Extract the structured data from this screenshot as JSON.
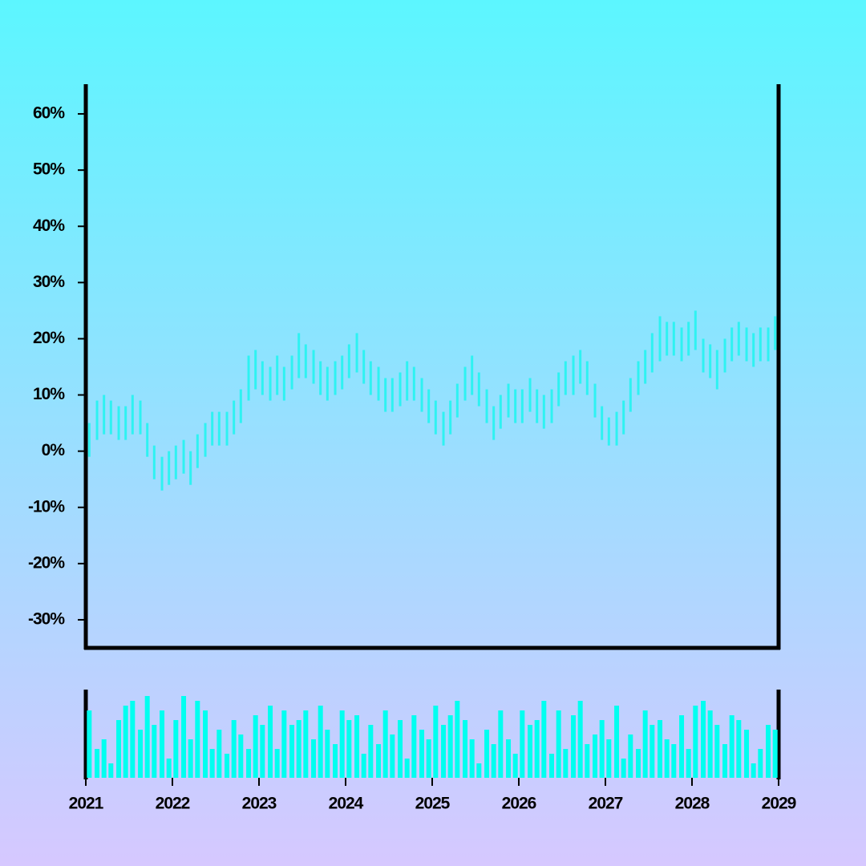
{
  "chart_data": {
    "type": "range",
    "color": "#2ef2f2",
    "volume_color": "#00fff0",
    "x": [
      2021.04,
      2021.13,
      2021.21,
      2021.29,
      2021.38,
      2021.46,
      2021.54,
      2021.63,
      2021.71,
      2021.79,
      2021.88,
      2021.96,
      2022.04,
      2022.13,
      2022.21,
      2022.29,
      2022.38,
      2022.46,
      2022.54,
      2022.63,
      2022.71,
      2022.79,
      2022.88,
      2022.96,
      2023.04,
      2023.13,
      2023.21,
      2023.29,
      2023.38,
      2023.46,
      2023.54,
      2023.63,
      2023.71,
      2023.79,
      2023.88,
      2023.96,
      2024.04,
      2024.13,
      2024.21,
      2024.29,
      2024.38,
      2024.46,
      2024.54,
      2024.63,
      2024.71,
      2024.79,
      2024.88,
      2024.96,
      2025.04,
      2025.13,
      2025.21,
      2025.29,
      2025.38,
      2025.46,
      2025.54,
      2025.63,
      2025.71,
      2025.79,
      2025.88,
      2025.96,
      2026.04,
      2026.13,
      2026.21,
      2026.29,
      2026.38,
      2026.46,
      2026.54,
      2026.63,
      2026.71,
      2026.79,
      2026.88,
      2026.96,
      2027.04,
      2027.13,
      2027.21,
      2027.29,
      2027.38,
      2027.46,
      2027.54,
      2027.63,
      2027.71,
      2027.79,
      2027.88,
      2027.96,
      2028.04,
      2028.13,
      2028.21,
      2028.29,
      2028.38,
      2028.46,
      2028.54,
      2028.63,
      2028.71,
      2028.79,
      2028.88,
      2028.96
    ],
    "low": [
      -1,
      2,
      3,
      3,
      2,
      2,
      3,
      3,
      -1,
      -5,
      -7,
      -6,
      -5,
      -4,
      -6,
      -3,
      -1,
      1,
      1,
      1,
      3,
      5,
      9,
      11,
      10,
      9,
      10,
      9,
      11,
      13,
      13,
      12,
      10,
      9,
      10,
      11,
      13,
      14,
      12,
      10,
      9,
      7,
      7,
      8,
      9,
      9,
      7,
      5,
      3,
      1,
      3,
      6,
      9,
      10,
      8,
      5,
      2,
      4,
      6,
      5,
      5,
      7,
      5,
      4,
      5,
      8,
      10,
      10,
      12,
      10,
      6,
      2,
      1,
      1,
      3,
      7,
      10,
      12,
      14,
      16,
      17,
      17,
      16,
      17,
      18,
      14,
      13,
      11,
      14,
      16,
      17,
      16,
      15,
      16,
      16,
      18
    ],
    "high": [
      5,
      9,
      10,
      9,
      8,
      8,
      10,
      9,
      5,
      1,
      -1,
      0,
      1,
      2,
      0,
      3,
      5,
      7,
      7,
      7,
      9,
      11,
      17,
      18,
      16,
      15,
      17,
      15,
      17,
      21,
      19,
      18,
      16,
      15,
      16,
      17,
      19,
      21,
      18,
      16,
      15,
      13,
      13,
      14,
      16,
      15,
      13,
      11,
      9,
      7,
      9,
      12,
      15,
      17,
      14,
      11,
      8,
      10,
      12,
      11,
      11,
      13,
      11,
      10,
      11,
      14,
      16,
      17,
      18,
      16,
      12,
      8,
      6,
      7,
      9,
      13,
      16,
      18,
      21,
      24,
      23,
      23,
      22,
      23,
      25,
      20,
      19,
      18,
      20,
      22,
      23,
      22,
      21,
      22,
      22,
      24
    ],
    "volume": [
      70,
      30,
      40,
      15,
      60,
      75,
      80,
      50,
      85,
      55,
      70,
      20,
      60,
      85,
      40,
      80,
      70,
      30,
      50,
      25,
      60,
      45,
      30,
      65,
      55,
      75,
      30,
      70,
      55,
      60,
      70,
      40,
      75,
      50,
      35,
      70,
      60,
      65,
      25,
      55,
      35,
      70,
      45,
      60,
      20,
      65,
      50,
      40,
      75,
      55,
      65,
      80,
      60,
      40,
      15,
      50,
      35,
      70,
      40,
      25,
      70,
      55,
      60,
      80,
      25,
      70,
      30,
      65,
      80,
      35,
      45,
      60,
      40,
      75,
      20,
      45,
      30,
      70,
      55,
      60,
      40,
      35,
      65,
      30,
      75,
      80,
      70,
      55,
      35,
      65,
      60,
      50,
      15,
      30,
      55,
      50
    ],
    "xlim": [
      2021,
      2029
    ],
    "xticks": [
      2021,
      2022,
      2023,
      2024,
      2025,
      2026,
      2027,
      2028,
      2029
    ],
    "ylim": [
      -35,
      65
    ],
    "yticks": [
      {
        "value": -30,
        "label": "-30%"
      },
      {
        "value": -20,
        "label": "-20%"
      },
      {
        "value": -10,
        "label": "-10%"
      },
      {
        "value": 0,
        "label": "0%"
      },
      {
        "value": 10,
        "label": "10%"
      },
      {
        "value": 20,
        "label": "20%"
      },
      {
        "value": 30,
        "label": "30%"
      },
      {
        "value": 40,
        "label": "40%"
      },
      {
        "value": 50,
        "label": "50%"
      },
      {
        "value": 60,
        "label": "60%"
      }
    ]
  }
}
